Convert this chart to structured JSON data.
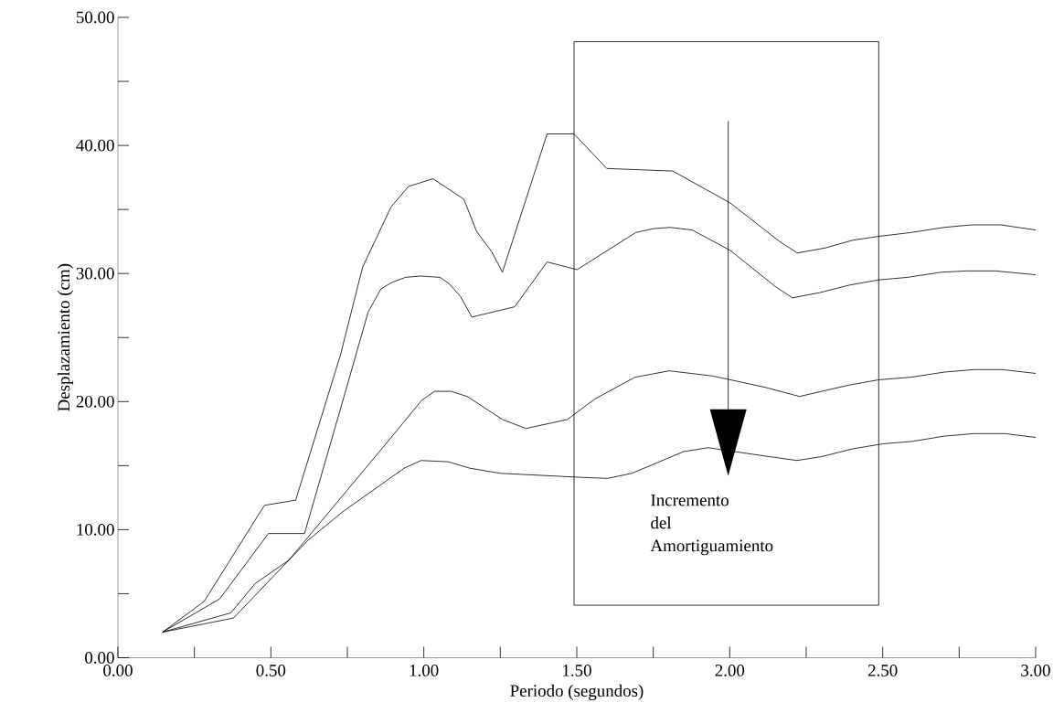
{
  "chart_data": {
    "type": "line",
    "xlabel": "Periodo (segundos)",
    "ylabel": "Desplazamiento (cm)",
    "xlim": [
      0,
      3
    ],
    "ylim": [
      0,
      50
    ],
    "marker": "none",
    "xticks": [
      {
        "value": 0,
        "label": "0.00"
      },
      {
        "value": 0.25,
        "label": null
      },
      {
        "value": 0.5,
        "label": "0.50"
      },
      {
        "value": 0.75,
        "label": null
      },
      {
        "value": 1,
        "label": "1.00"
      },
      {
        "value": 1.25,
        "label": null
      },
      {
        "value": 1.5,
        "label": "1.50"
      },
      {
        "value": 1.75,
        "label": null
      },
      {
        "value": 2,
        "label": "2.00"
      },
      {
        "value": 2.25,
        "label": null
      },
      {
        "value": 2.5,
        "label": "2.50"
      },
      {
        "value": 2.75,
        "label": null
      },
      {
        "value": 3,
        "label": "3.00"
      }
    ],
    "yticks": [
      {
        "value": 0,
        "label": "0.00"
      },
      {
        "value": 5,
        "label": null
      },
      {
        "value": 10,
        "label": "10.00"
      },
      {
        "value": 15,
        "label": null
      },
      {
        "value": 20,
        "label": "20.00"
      },
      {
        "value": 25,
        "label": null
      },
      {
        "value": 30,
        "label": "30.00"
      },
      {
        "value": 35,
        "label": null
      },
      {
        "value": 40,
        "label": "40.00"
      },
      {
        "value": 45,
        "label": null
      },
      {
        "value": 50,
        "label": "50.00"
      }
    ],
    "annotations": [
      "Incremento del Amortiguamiento"
    ],
    "series": [
      {
        "color": "#000000",
        "x": [
          0.146,
          0.282,
          0.479,
          0.581,
          0.727,
          0.8,
          0.893,
          0.95,
          1.03,
          1.131,
          1.172,
          1.222,
          1.257,
          1.403,
          1.491,
          1.598,
          1.814,
          2.002,
          2.163,
          2.221,
          2.313,
          2.402,
          2.487,
          2.592,
          2.701,
          2.791,
          2.885,
          3.0
        ],
        "values": [
          2.0,
          4.4,
          11.9,
          12.3,
          23.6,
          30.5,
          35.2,
          36.8,
          37.4,
          35.8,
          33.3,
          31.7,
          30.1,
          40.9,
          40.9,
          38.2,
          38.0,
          35.5,
          32.5,
          31.6,
          32.0,
          32.6,
          32.9,
          33.2,
          33.6,
          33.8,
          33.8,
          33.4
        ]
      },
      {
        "color": "#000000",
        "x": [
          0.146,
          0.333,
          0.492,
          0.61,
          0.738,
          0.818,
          0.86,
          0.895,
          0.94,
          0.99,
          1.053,
          1.083,
          1.12,
          1.157,
          1.297,
          1.403,
          1.501,
          1.693,
          1.75,
          1.805,
          1.877,
          2.002,
          2.148,
          2.205,
          2.293,
          2.392,
          2.487,
          2.581,
          2.691,
          2.771,
          2.87,
          3.0
        ],
        "values": [
          2.0,
          4.6,
          9.7,
          9.7,
          20.3,
          27.0,
          28.8,
          29.3,
          29.7,
          29.8,
          29.7,
          29.2,
          28.2,
          26.6,
          27.4,
          30.9,
          30.3,
          33.2,
          33.5,
          33.6,
          33.4,
          31.8,
          29.0,
          28.1,
          28.5,
          29.1,
          29.5,
          29.7,
          30.1,
          30.2,
          30.2,
          29.9
        ]
      },
      {
        "color": "#000000",
        "x": [
          0.146,
          0.369,
          0.449,
          0.558,
          0.883,
          0.993,
          1.035,
          1.088,
          1.142,
          1.257,
          1.334,
          1.469,
          1.559,
          1.69,
          1.802,
          1.944,
          2.002,
          2.118,
          2.228,
          2.392,
          2.487,
          2.592,
          2.701,
          2.801,
          2.89,
          3.0
        ],
        "values": [
          2.0,
          3.5,
          5.8,
          7.6,
          16.9,
          20.1,
          20.8,
          20.8,
          20.4,
          18.6,
          17.9,
          18.6,
          20.2,
          21.9,
          22.4,
          22.0,
          21.7,
          21.1,
          20.4,
          21.3,
          21.7,
          21.9,
          22.3,
          22.5,
          22.5,
          22.2
        ]
      },
      {
        "color": "#000000",
        "x": [
          0.146,
          0.378,
          0.558,
          0.623,
          0.735,
          0.936,
          0.991,
          1.08,
          1.15,
          1.25,
          1.5,
          1.6,
          1.68,
          1.8,
          1.85,
          1.93,
          2.1,
          2.22,
          2.3,
          2.4,
          2.5,
          2.6,
          2.7,
          2.8,
          2.9,
          3.0
        ],
        "values": [
          2.0,
          3.1,
          7.6,
          9.2,
          11.4,
          14.8,
          15.4,
          15.3,
          14.8,
          14.4,
          14.1,
          14.0,
          14.4,
          15.6,
          16.1,
          16.4,
          15.8,
          15.4,
          15.7,
          16.3,
          16.7,
          16.9,
          17.3,
          17.5,
          17.5,
          17.2
        ]
      }
    ]
  }
}
